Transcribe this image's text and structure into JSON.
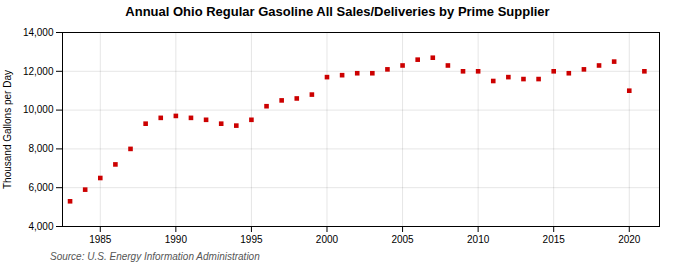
{
  "chart_data": {
    "type": "scatter",
    "title": "Annual Ohio Regular Gasoline All Sales/Deliveries by Prime Supplier",
    "ylabel": "Thousand Gallons per Day",
    "source": "Source: U.S. Energy Information Administration",
    "x": [
      1983,
      1984,
      1985,
      1986,
      1987,
      1988,
      1989,
      1990,
      1991,
      1992,
      1993,
      1994,
      1995,
      1996,
      1997,
      1998,
      1999,
      2000,
      2001,
      2002,
      2003,
      2004,
      2005,
      2006,
      2007,
      2008,
      2009,
      2010,
      2011,
      2012,
      2013,
      2014,
      2015,
      2016,
      2017,
      2018,
      2019,
      2020,
      2021
    ],
    "values": [
      5300,
      5900,
      6500,
      7200,
      8000,
      9300,
      9600,
      9700,
      9600,
      9500,
      9300,
      9200,
      9500,
      10200,
      10500,
      10600,
      10800,
      11700,
      11800,
      11900,
      11900,
      12100,
      12300,
      12600,
      12700,
      12300,
      12000,
      12000,
      11500,
      11700,
      11600,
      11600,
      12000,
      11900,
      12100,
      12300,
      12500,
      11000,
      12000
    ],
    "color": "#cc0000",
    "marker": "square",
    "xlim": [
      1982.5,
      2022
    ],
    "ylim": [
      4000,
      14000
    ],
    "xticks": [
      1985,
      1990,
      1995,
      2000,
      2005,
      2010,
      2015,
      2020
    ],
    "yticks": [
      {
        "value": 4000,
        "label": "4,000"
      },
      {
        "value": 6000,
        "label": "6,000"
      },
      {
        "value": 8000,
        "label": "8,000"
      },
      {
        "value": 10000,
        "label": "10,000"
      },
      {
        "value": 12000,
        "label": "12,000"
      },
      {
        "value": 14000,
        "label": "14,000"
      }
    ],
    "grid": true
  }
}
